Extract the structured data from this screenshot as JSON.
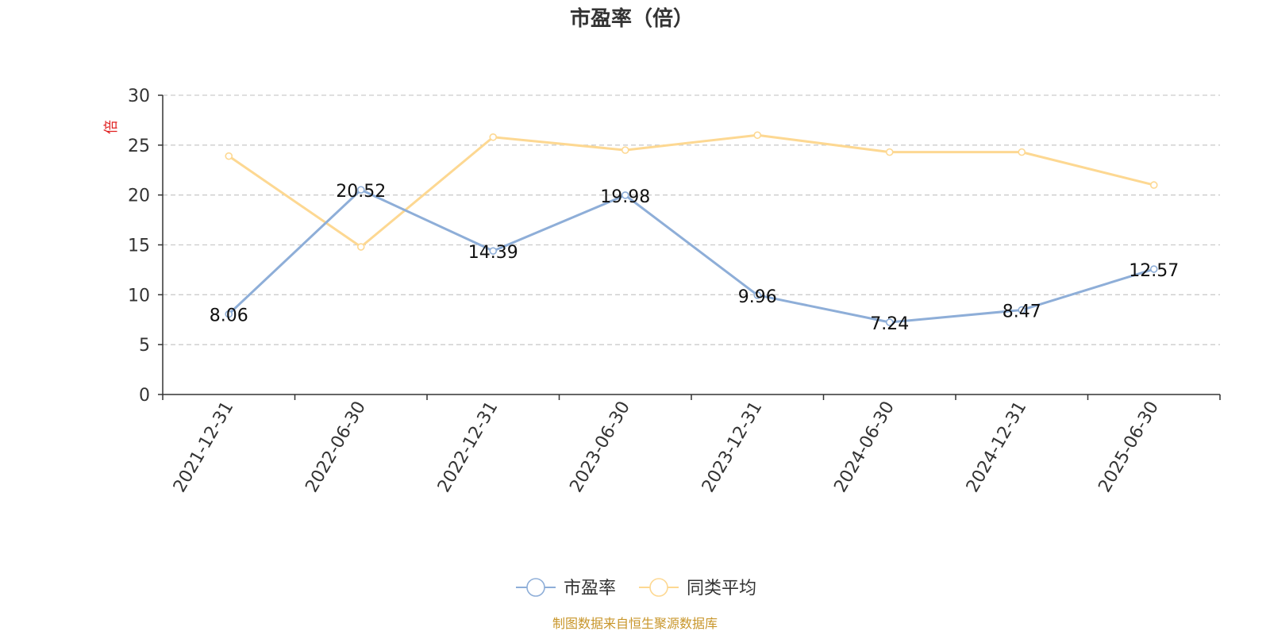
{
  "chart_data": {
    "type": "line",
    "title": "市盈率（倍）",
    "ylabel": "倍",
    "xlabel": "",
    "categories": [
      "2021-12-31",
      "2022-06-30",
      "2022-12-31",
      "2023-06-30",
      "2023-12-31",
      "2024-06-30",
      "2024-12-31",
      "2025-06-30"
    ],
    "ylim": [
      0,
      30
    ],
    "yticks": [
      0,
      5,
      10,
      15,
      20,
      25,
      30
    ],
    "grid": true,
    "legend_position": "bottom",
    "series": [
      {
        "name": "市盈率",
        "color": "#8eaed8",
        "values": [
          8.06,
          20.52,
          14.39,
          19.98,
          9.96,
          7.24,
          8.47,
          12.57
        ],
        "show_labels": true
      },
      {
        "name": "同类平均",
        "color": "#fdd892",
        "values": [
          23.9,
          14.8,
          25.8,
          24.5,
          26.0,
          24.3,
          24.3,
          21.0
        ],
        "show_labels": false
      }
    ],
    "source": "制图数据来自恒生聚源数据库"
  }
}
